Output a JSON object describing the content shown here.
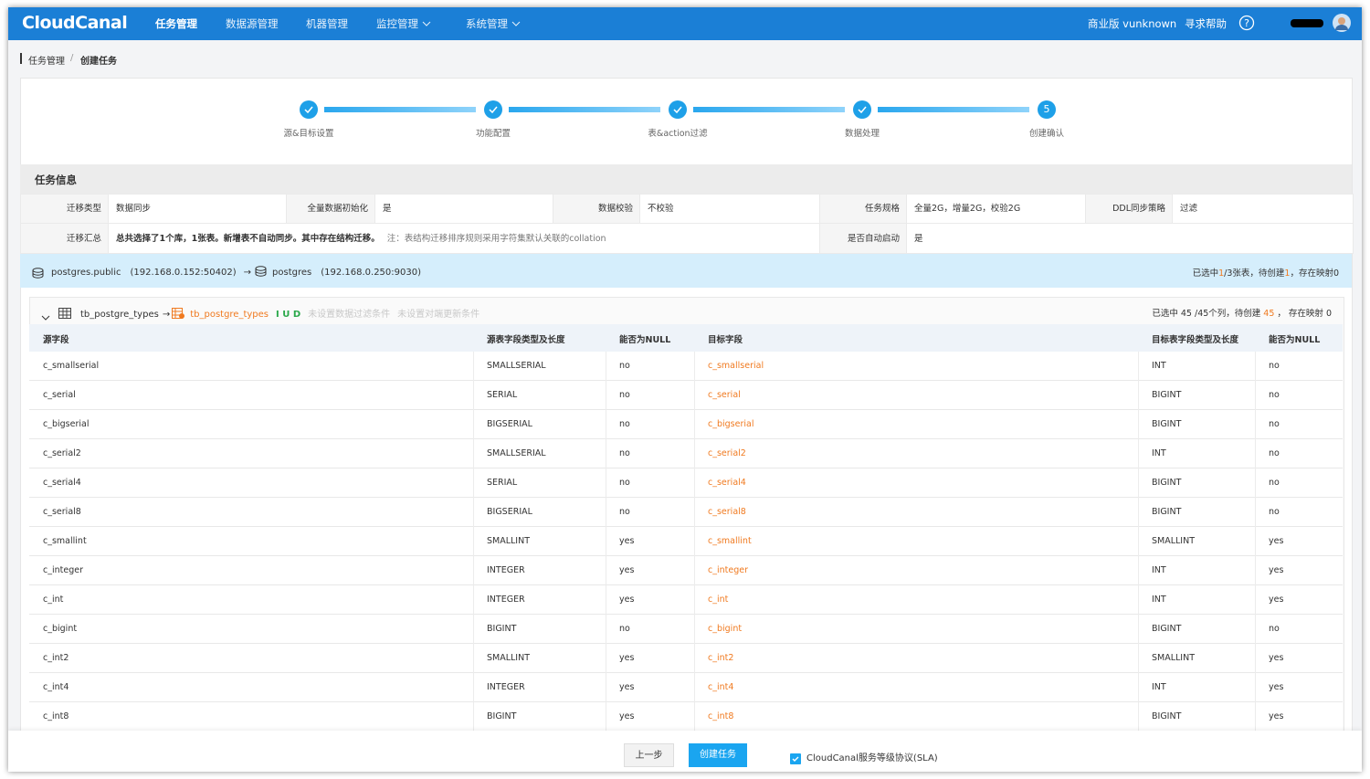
{
  "nav": {
    "logo": "CloudCanal",
    "items": [
      {
        "label": "任务管理",
        "menu": false
      },
      {
        "label": "数据源管理",
        "menu": false
      },
      {
        "label": "机器管理",
        "menu": false
      },
      {
        "label": "监控管理",
        "menu": true
      },
      {
        "label": "系统管理",
        "menu": true
      }
    ],
    "edition": "商业版 vunknown",
    "help": "寻求帮助"
  },
  "breadcrumb": [
    "任务管理",
    "创建任务"
  ],
  "steps": {
    "labels": [
      "源&目标设置",
      "功能配置",
      "表&action过滤",
      "数据处理",
      "创建确认"
    ],
    "current": "5"
  },
  "task_info": {
    "title": "任务信息",
    "row1": [
      [
        "迁移类型",
        "数据同步"
      ],
      [
        "全量数据初始化",
        "是"
      ],
      [
        "数据校验",
        "不校验"
      ],
      [
        "任务规格",
        "全量2G，增量2G，校验2G"
      ],
      [
        "DDL同步策略",
        "过滤"
      ]
    ],
    "row2": {
      "summary_label": "迁移汇总",
      "summary": "总共选择了1个库，1张表。新增表不自动同步。其中存在结构迁移。",
      "note": "注：表结构迁移排序规则采用字符集默认关联的collation",
      "auto_label": "是否自动启动",
      "auto": "是"
    }
  },
  "db_bar": {
    "source": "postgres.public",
    "source_addr": "(192.168.0.152:50402)",
    "target": "postgres",
    "target_addr": "(192.168.0.250:9030)",
    "status": [
      "已选中",
      "1",
      "/3张表，待创建",
      "1",
      "，存在映射0"
    ]
  },
  "table_panel": {
    "source_table": "tb_postgre_types",
    "target_table": "tb_postgre_types",
    "actions": "I U D",
    "filter": "未设置数据过滤条件",
    "update": "未设置对端更新条件",
    "summary": [
      "已选中 45 /45个列，待创建 ",
      "45",
      " ， 存在映射 0"
    ],
    "columns": [
      "源字段",
      "源表字段类型及长度",
      "能否为NULL",
      "目标字段",
      "目标表字段类型及长度",
      "能否为NULL"
    ],
    "rows": [
      [
        "c_smallserial",
        "SMALLSERIAL",
        "no",
        "c_smallserial",
        "INT",
        "no"
      ],
      [
        "c_serial",
        "SERIAL",
        "no",
        "c_serial",
        "BIGINT",
        "no"
      ],
      [
        "c_bigserial",
        "BIGSERIAL",
        "no",
        "c_bigserial",
        "BIGINT",
        "no"
      ],
      [
        "c_serial2",
        "SMALLSERIAL",
        "no",
        "c_serial2",
        "INT",
        "no"
      ],
      [
        "c_serial4",
        "SERIAL",
        "no",
        "c_serial4",
        "BIGINT",
        "no"
      ],
      [
        "c_serial8",
        "BIGSERIAL",
        "no",
        "c_serial8",
        "BIGINT",
        "no"
      ],
      [
        "c_smallint",
        "SMALLINT",
        "yes",
        "c_smallint",
        "SMALLINT",
        "yes"
      ],
      [
        "c_integer",
        "INTEGER",
        "yes",
        "c_integer",
        "INT",
        "yes"
      ],
      [
        "c_int",
        "INTEGER",
        "yes",
        "c_int",
        "INT",
        "yes"
      ],
      [
        "c_bigint",
        "BIGINT",
        "no",
        "c_bigint",
        "BIGINT",
        "no"
      ],
      [
        "c_int2",
        "SMALLINT",
        "yes",
        "c_int2",
        "SMALLINT",
        "yes"
      ],
      [
        "c_int4",
        "INTEGER",
        "yes",
        "c_int4",
        "INT",
        "yes"
      ],
      [
        "c_int8",
        "BIGINT",
        "yes",
        "c_int8",
        "BIGINT",
        "yes"
      ]
    ]
  },
  "footer": {
    "prev": "上一步",
    "create": "创建任务",
    "sla": "CloudCanal服务等级协议(SLA)"
  }
}
